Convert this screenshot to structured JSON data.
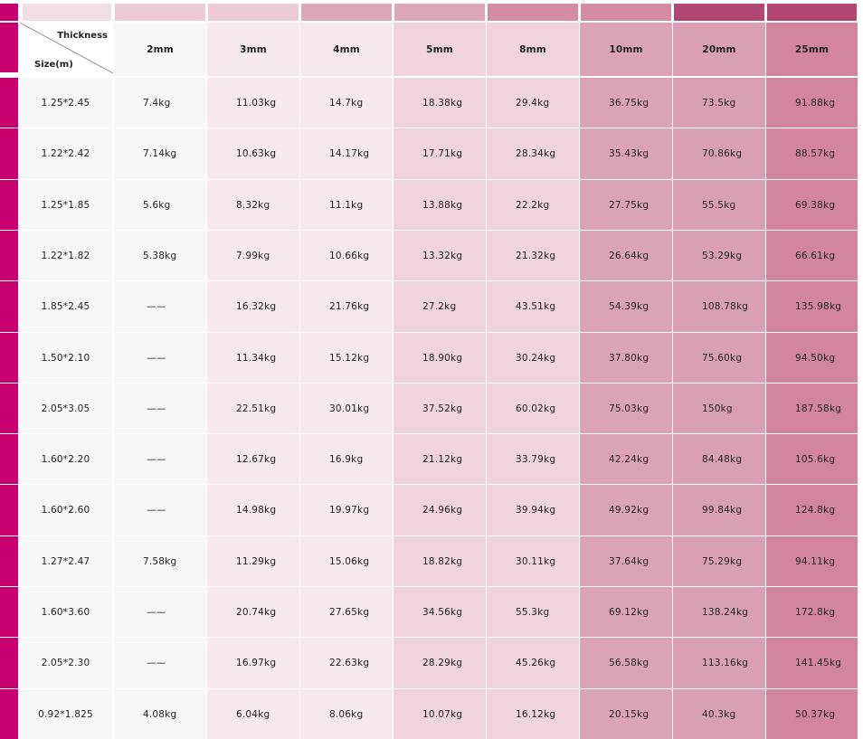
{
  "colors": {
    "accent": "#c8006e",
    "column_fills": [
      "#f7f7f7",
      "#f7f7f7",
      "#f6e8ed",
      "#f6e8ed",
      "#efd3dd",
      "#efd3dd",
      "#dba3b6",
      "#d99fb3",
      "#d3859f"
    ],
    "top_swatches": [
      "#f2dfe6",
      "#f2dfe6",
      "#eccbd7",
      "#eccbd7",
      "#dca5b8",
      "#dca5b8",
      "#d38ca4",
      "#d38ca4",
      "#b24872",
      "#b24872"
    ]
  },
  "table": {
    "corner": {
      "thickness_label": "Thickness",
      "size_label": "Size(m)"
    },
    "thickness_headers": [
      "2mm",
      "3mm",
      "4mm",
      "5mm",
      "8mm",
      "10mm",
      "20mm",
      "25mm"
    ],
    "rows": [
      {
        "size": "1.25*2.45",
        "values": [
          "7.4kg",
          "11.03kg",
          "14.7kg",
          "18.38kg",
          "29.4kg",
          "36.75kg",
          "73.5kg",
          "91.88kg"
        ]
      },
      {
        "size": "1.22*2.42",
        "values": [
          "7.14kg",
          "10.63kg",
          "14.17kg",
          "17.71kg",
          "28.34kg",
          "35.43kg",
          "70.86kg",
          "88.57kg"
        ]
      },
      {
        "size": "1.25*1.85",
        "values": [
          "5.6kg",
          "8.32kg",
          "11.1kg",
          "13.88kg",
          "22.2kg",
          "27.75kg",
          "55.5kg",
          "69.38kg"
        ]
      },
      {
        "size": "1.22*1.82",
        "values": [
          "5.38kg",
          "7.99kg",
          "10.66kg",
          "13.32kg",
          "21.32kg",
          "26.64kg",
          "53.29kg",
          "66.61kg"
        ]
      },
      {
        "size": "1.85*2.45",
        "values": [
          "——",
          "16.32kg",
          "21.76kg",
          "27.2kg",
          "43.51kg",
          "54.39kg",
          "108.78kg",
          "135.98kg"
        ]
      },
      {
        "size": "1.50*2.10",
        "values": [
          "——",
          "11.34kg",
          "15.12kg",
          "18.90kg",
          "30.24kg",
          "37.80kg",
          "75.60kg",
          "94.50kg"
        ]
      },
      {
        "size": "2.05*3.05",
        "values": [
          "——",
          "22.51kg",
          "30.01kg",
          "37.52kg",
          "60.02kg",
          "75.03kg",
          "150kg",
          "187.58kg"
        ]
      },
      {
        "size": "1.60*2.20",
        "values": [
          "——",
          "12.67kg",
          "16.9kg",
          "21.12kg",
          "33.79kg",
          "42.24kg",
          "84.48kg",
          "105.6kg"
        ]
      },
      {
        "size": "1.60*2.60",
        "values": [
          "——",
          "14.98kg",
          "19.97kg",
          "24.96kg",
          "39.94kg",
          "49.92kg",
          "99.84kg",
          "124.8kg"
        ]
      },
      {
        "size": "1.27*2.47",
        "values": [
          "7.58kg",
          "11.29kg",
          "15.06kg",
          "18.82kg",
          "30.11kg",
          "37.64kg",
          "75.29kg",
          "94.11kg"
        ]
      },
      {
        "size": "1.60*3.60",
        "values": [
          "——",
          "20.74kg",
          "27.65kg",
          "34.56kg",
          "55.3kg",
          "69.12kg",
          "138.24kg",
          "172.8kg"
        ]
      },
      {
        "size": "2.05*2.30",
        "values": [
          "——",
          "16.97kg",
          "22.63kg",
          "28.29kg",
          "45.26kg",
          "56.58kg",
          "113.16kg",
          "141.45kg"
        ]
      },
      {
        "size": "0.92*1.825",
        "values": [
          "4.08kg",
          "6.04kg",
          "8.06kg",
          "10.07kg",
          "16.12kg",
          "20.15kg",
          "40.3kg",
          "50.37kg"
        ]
      }
    ]
  }
}
